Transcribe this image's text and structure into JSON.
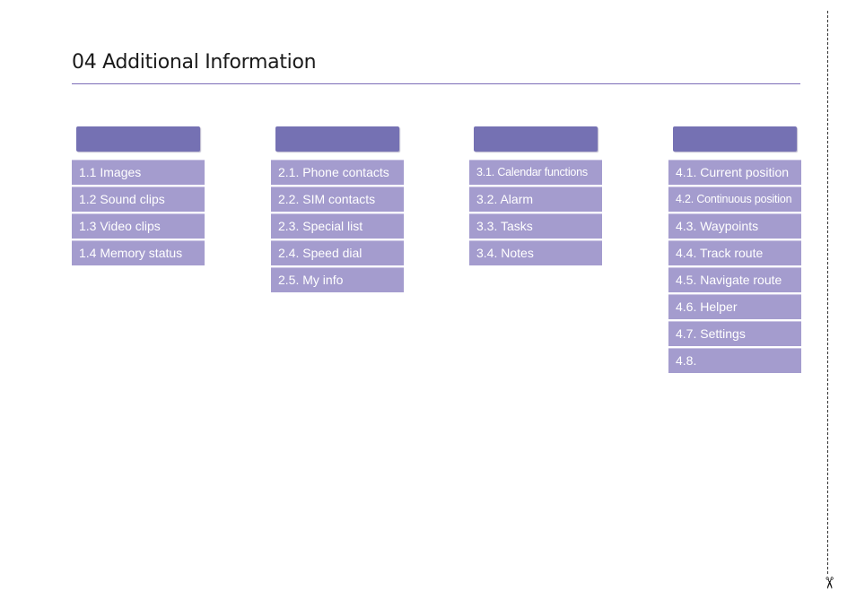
{
  "page": {
    "title": "04 Additional Information",
    "accent_color": "#7571b3",
    "item_color": "#a49cce"
  },
  "columns": [
    {
      "header": "",
      "items": [
        "1.1 Images",
        "1.2 Sound clips",
        "1.3 Video clips",
        "1.4 Memory status"
      ]
    },
    {
      "header": "",
      "items": [
        "2.1. Phone contacts",
        "2.2. SIM contacts",
        "2.3. Special list",
        "2.4. Speed dial",
        "2.5. My info"
      ]
    },
    {
      "header": "",
      "items": [
        "3.1. Calendar functions",
        "3.2. Alarm",
        "3.3. Tasks",
        "3.4. Notes"
      ]
    },
    {
      "header": "",
      "items": [
        "4.1. Current position",
        "4.2. Continuous position",
        "4.3. Waypoints",
        "4.4. Track route",
        "4.5. Navigate route",
        "4.6. Helper",
        "4.7. Settings",
        "4.8."
      ]
    }
  ],
  "cut_marker": {
    "icon": "scissors-icon",
    "glyph": "✂"
  }
}
